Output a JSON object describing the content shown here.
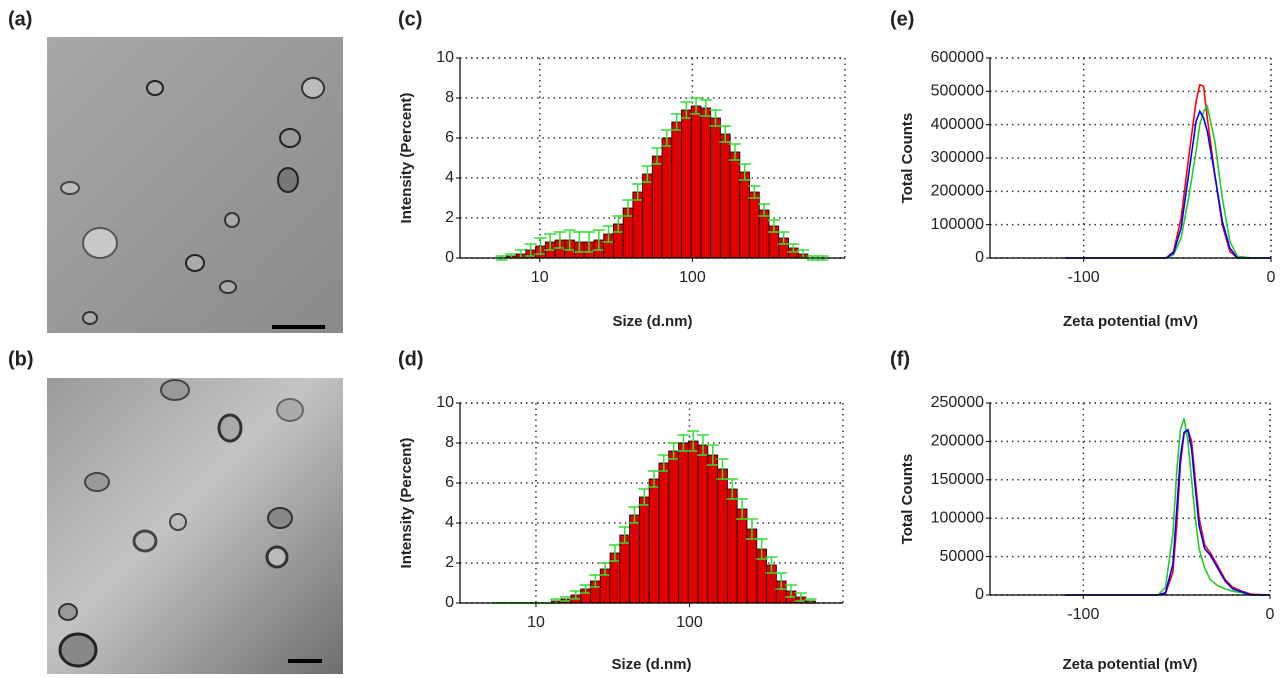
{
  "images": [
    {
      "label": "(a)"
    },
    {
      "label": "(b)"
    }
  ],
  "chart_data": [
    {
      "type": "bar",
      "label": "(c)",
      "xlabel": "Size (d.nm)",
      "ylabel": "Intensity (Percent)",
      "log_x": true,
      "grid": true,
      "color": "#e00000",
      "error_color": "#33dd33",
      "xlim": [
        3,
        1000
      ],
      "xticks": [
        10,
        100
      ],
      "ylim": [
        0,
        10
      ],
      "yticks": [
        0,
        2,
        4,
        6,
        8,
        10
      ],
      "x": [
        5.615,
        6.503,
        7.531,
        8.721,
        10.1,
        11.7,
        13.54,
        15.69,
        18.17,
        21.04,
        24.36,
        28.21,
        32.67,
        37.84,
        43.82,
        50.75,
        58.77,
        68.06,
        78.82,
        91.28,
        105.7,
        122.4,
        141.8,
        164.2,
        190.1,
        220.2,
        255.0,
        295.3,
        342.0,
        396.1,
        458.7,
        531.2,
        615.1,
        712.4
      ],
      "values": [
        0,
        0.1,
        0.2,
        0.4,
        0.6,
        0.8,
        0.9,
        0.9,
        0.8,
        0.8,
        0.9,
        1.2,
        1.7,
        2.5,
        3.3,
        4.2,
        5.1,
        6.0,
        6.8,
        7.4,
        7.6,
        7.5,
        7.0,
        6.2,
        5.3,
        4.3,
        3.3,
        2.4,
        1.6,
        1.0,
        0.5,
        0.2,
        0,
        0
      ],
      "errors": [
        0.1,
        0.1,
        0.2,
        0.3,
        0.4,
        0.4,
        0.4,
        0.5,
        0.5,
        0.5,
        0.5,
        0.4,
        0.4,
        0.4,
        0.4,
        0.4,
        0.4,
        0.4,
        0.4,
        0.4,
        0.4,
        0.4,
        0.4,
        0.4,
        0.4,
        0.4,
        0.3,
        0.3,
        0.3,
        0.3,
        0.2,
        0.2,
        0.1,
        0.1
      ]
    },
    {
      "type": "bar",
      "label": "(d)",
      "xlabel": "Size (d.nm)",
      "ylabel": "Intensity (Percent)",
      "log_x": true,
      "grid": true,
      "color": "#e00000",
      "error_color": "#33dd33",
      "xlim": [
        3.2,
        1000
      ],
      "xticks": [
        10,
        100
      ],
      "ylim": [
        0,
        10
      ],
      "yticks": [
        0,
        2,
        4,
        6,
        8,
        10
      ],
      "x": [
        5.615,
        6.503,
        7.531,
        8.721,
        10.1,
        11.7,
        13.54,
        15.69,
        18.17,
        21.04,
        24.36,
        28.21,
        32.67,
        37.84,
        43.82,
        50.75,
        58.77,
        68.06,
        78.82,
        91.28,
        105.7,
        122.4,
        141.8,
        164.2,
        190.1,
        220.2,
        255.0,
        295.3,
        342.0,
        396.1,
        458.7,
        531.2,
        615.1
      ],
      "values": [
        0,
        0,
        0,
        0,
        0,
        0,
        0.1,
        0.2,
        0.4,
        0.7,
        1.1,
        1.7,
        2.5,
        3.4,
        4.4,
        5.3,
        6.2,
        7.0,
        7.6,
        8.0,
        8.1,
        7.9,
        7.4,
        6.7,
        5.7,
        4.7,
        3.7,
        2.7,
        1.9,
        1.1,
        0.6,
        0.3,
        0.1
      ],
      "errors": [
        0,
        0,
        0,
        0,
        0,
        0,
        0.1,
        0.1,
        0.2,
        0.2,
        0.3,
        0.3,
        0.4,
        0.4,
        0.4,
        0.4,
        0.4,
        0.4,
        0.4,
        0.4,
        0.5,
        0.5,
        0.5,
        0.5,
        0.5,
        0.5,
        0.5,
        0.5,
        0.4,
        0.4,
        0.3,
        0.2,
        0.1
      ]
    },
    {
      "type": "line",
      "label": "(e)",
      "xlabel": "Zeta potential (mV)",
      "ylabel": "Total Counts",
      "grid": true,
      "xlim": [
        -150,
        0
      ],
      "xticks": [
        -100,
        0
      ],
      "ylim": [
        0,
        600000
      ],
      "yticks": [
        0,
        100000,
        200000,
        300000,
        400000,
        500000,
        600000
      ],
      "x": [
        -110,
        -56,
        -52,
        -48,
        -44,
        -40,
        -38,
        -36,
        -34,
        -30,
        -26,
        -22,
        -18,
        -10,
        0
      ],
      "series": [
        {
          "color": "#ff0000",
          "values": [
            0,
            0,
            20000,
            120000,
            300000,
            470000,
            520000,
            515000,
            420000,
            250000,
            100000,
            20000,
            0,
            0,
            0
          ]
        },
        {
          "color": "#22cc22",
          "values": [
            0,
            0,
            10000,
            60000,
            180000,
            320000,
            400000,
            440000,
            455000,
            350000,
            180000,
            50000,
            5000,
            0,
            0
          ]
        },
        {
          "color": "#0000ff",
          "values": [
            0,
            0,
            15000,
            90000,
            250000,
            410000,
            440000,
            420000,
            380000,
            250000,
            110000,
            30000,
            0,
            0,
            0
          ]
        }
      ]
    },
    {
      "type": "line",
      "label": "(f)",
      "xlabel": "Zeta potential (mV)",
      "ylabel": "Total Counts",
      "grid": true,
      "xlim": [
        -150,
        0
      ],
      "xticks": [
        -100,
        0
      ],
      "ylim": [
        0,
        250000
      ],
      "yticks": [
        0,
        50000,
        100000,
        150000,
        200000,
        250000
      ],
      "x": [
        -110,
        -60,
        -56,
        -52,
        -50,
        -48,
        -46,
        -44,
        -42,
        -40,
        -38,
        -35,
        -32,
        -28,
        -24,
        -20,
        -15,
        -10,
        0
      ],
      "series": [
        {
          "color": "#ff0000",
          "values": [
            0,
            0,
            2000,
            30000,
            90000,
            170000,
            210000,
            215000,
            200000,
            150000,
            100000,
            65000,
            55000,
            38000,
            20000,
            10000,
            5000,
            1000,
            0
          ]
        },
        {
          "color": "#22cc22",
          "values": [
            0,
            0,
            10000,
            80000,
            160000,
            215000,
            230000,
            200000,
            150000,
            100000,
            60000,
            35000,
            20000,
            12000,
            8000,
            5000,
            3000,
            0,
            0
          ]
        },
        {
          "color": "#0000ff",
          "values": [
            0,
            0,
            3000,
            40000,
            110000,
            180000,
            212000,
            215000,
            190000,
            140000,
            90000,
            60000,
            52000,
            35000,
            18000,
            8000,
            4000,
            0,
            0
          ]
        }
      ]
    }
  ]
}
